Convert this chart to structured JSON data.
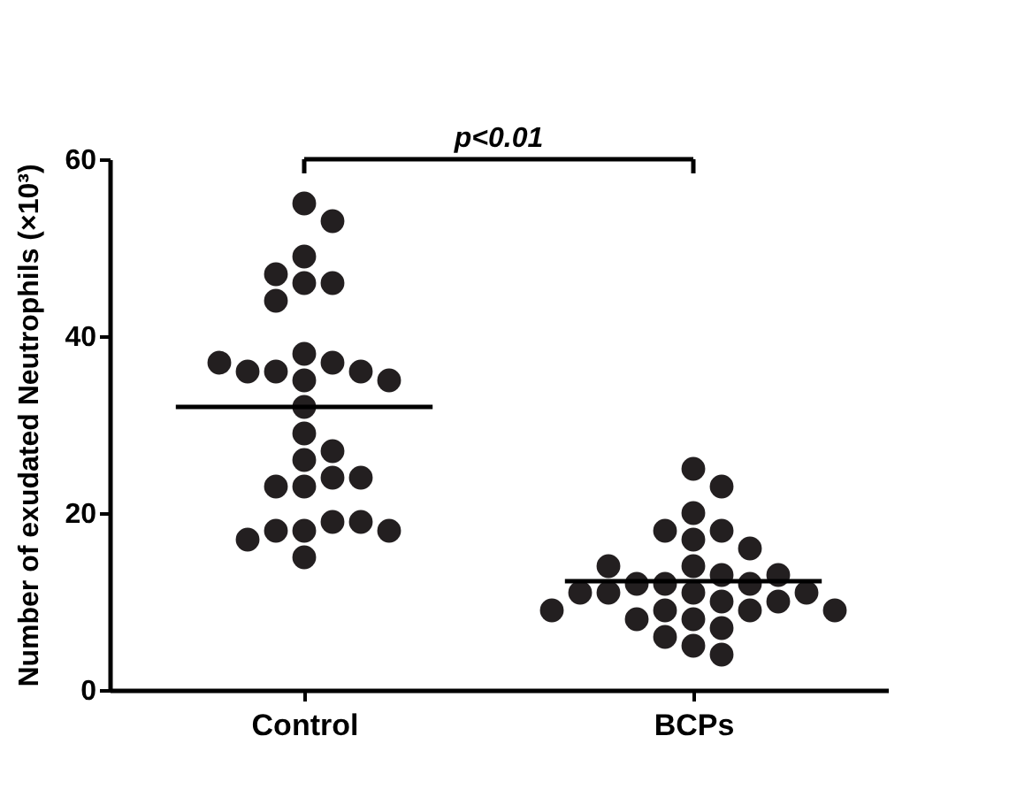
{
  "chart_data": {
    "type": "scatter",
    "ylabel": "Number of exudated Neutrophils (×10³)",
    "annotations": [
      "p<0.01"
    ],
    "categories": [
      "Control",
      "BCPs"
    ],
    "ylim": [
      0,
      60
    ],
    "yticks": [
      0,
      20,
      40,
      60
    ],
    "grid": false,
    "marker": "circle",
    "series": [
      {
        "color": "#231f20",
        "x": [
          "Control",
          "Control",
          "Control",
          "Control",
          "Control",
          "Control",
          "Control",
          "Control",
          "Control",
          "Control",
          "Control",
          "Control",
          "Control",
          "Control",
          "Control",
          "Control",
          "Control",
          "Control",
          "Control",
          "Control",
          "Control",
          "Control",
          "Control",
          "Control",
          "Control",
          "Control",
          "Control",
          "Control",
          "Control",
          "Control"
        ],
        "values": [
          55,
          53,
          49,
          46,
          46,
          47,
          44,
          38,
          37,
          36,
          35,
          36,
          36,
          35,
          37,
          32,
          29,
          26,
          27,
          24,
          23,
          23,
          24,
          18,
          19,
          18,
          19,
          17,
          18,
          15
        ]
      },
      {
        "color": "#231f20",
        "x": [
          "BCPs",
          "BCPs",
          "BCPs",
          "BCPs",
          "BCPs",
          "BCPs",
          "BCPs",
          "BCPs",
          "BCPs",
          "BCPs",
          "BCPs",
          "BCPs",
          "BCPs",
          "BCPs",
          "BCPs",
          "BCPs",
          "BCPs",
          "BCPs",
          "BCPs",
          "BCPs",
          "BCPs",
          "BCPs",
          "BCPs",
          "BCPs",
          "BCPs",
          "BCPs",
          "BCPs",
          "BCPs",
          "BCPs",
          "BCPs"
        ],
        "values": [
          25,
          23,
          20,
          18,
          17,
          18,
          16,
          14,
          13,
          12,
          12,
          12,
          13,
          14,
          11,
          11,
          11,
          10,
          9,
          9,
          10,
          11,
          8,
          8,
          9,
          9,
          7,
          6,
          5,
          4
        ]
      }
    ],
    "ref_lines": [
      {
        "axis": "y",
        "value": 32,
        "color": "#000000"
      },
      {
        "axis": "y",
        "value": 12.3,
        "color": "#000000"
      }
    ]
  }
}
